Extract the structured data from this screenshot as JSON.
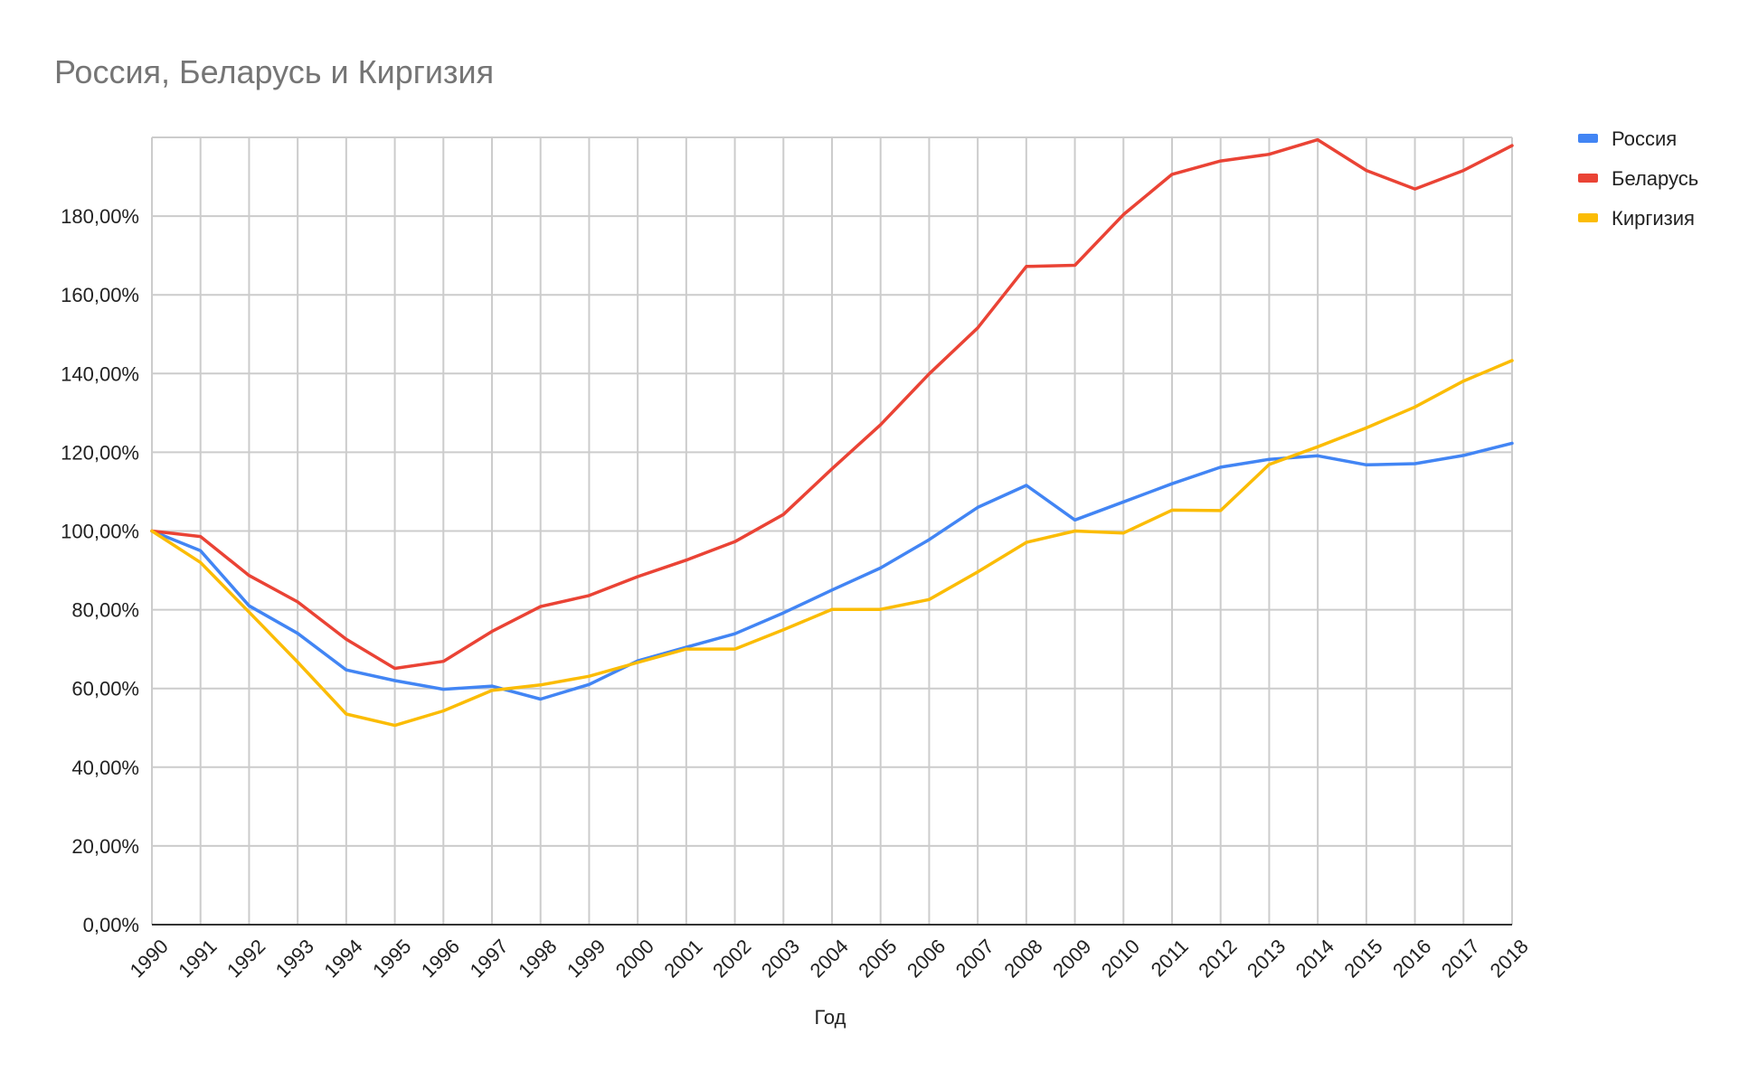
{
  "chart_data": {
    "type": "line",
    "title": "Россия, Беларусь и Киргизия",
    "xlabel": "Год",
    "ylabel": "",
    "ylim": [
      0,
      200
    ],
    "yticks": [
      0,
      20,
      40,
      60,
      80,
      100,
      120,
      140,
      160,
      180
    ],
    "ytick_labels": [
      "0,00%",
      "20,00%",
      "40,00%",
      "60,00%",
      "80,00%",
      "100,00%",
      "120,00%",
      "140,00%",
      "160,00%",
      "180,00%"
    ],
    "grid": true,
    "legend_position": "top-right",
    "x": [
      "1990",
      "1991",
      "1992",
      "1993",
      "1994",
      "1995",
      "1996",
      "1997",
      "1998",
      "1999",
      "2000",
      "2001",
      "2002",
      "2003",
      "2004",
      "2005",
      "2006",
      "2007",
      "2008",
      "2009",
      "2010",
      "2011",
      "2012",
      "2013",
      "2014",
      "2015",
      "2016",
      "2017",
      "2018"
    ],
    "series": [
      {
        "name": "Россия",
        "color": "#4285f4",
        "values": [
          100,
          95,
          81,
          74,
          64.7,
          62,
          59.8,
          60.6,
          57.3,
          61,
          67,
          70.5,
          73.9,
          79.2,
          85,
          90.6,
          97.8,
          106,
          111.6,
          102.8,
          107.4,
          112,
          116.2,
          118.2,
          119.1,
          116.8,
          117.1,
          119.2,
          122.3
        ]
      },
      {
        "name": "Беларусь",
        "color": "#ea4335",
        "values": [
          100,
          98.6,
          88.7,
          82,
          72.5,
          65.1,
          66.9,
          74.5,
          80.8,
          83.6,
          88.4,
          92.6,
          97.3,
          104.2,
          115.8,
          127,
          139.9,
          151.6,
          167.2,
          167.5,
          180.4,
          190.6,
          194,
          195.7,
          199.4,
          191.6,
          186.9,
          191.6,
          197.9
        ]
      },
      {
        "name": "Киргизия",
        "color": "#fbbc04",
        "values": [
          100,
          92,
          79.4,
          66.7,
          53.5,
          50.6,
          54.3,
          59.5,
          60.9,
          63.1,
          66.6,
          70,
          70,
          74.9,
          80.1,
          80.1,
          82.6,
          89.6,
          97.1,
          100,
          99.5,
          105.3,
          105.2,
          116.9,
          121.4,
          126.2,
          131.5,
          138.1,
          143.3
        ]
      }
    ]
  }
}
